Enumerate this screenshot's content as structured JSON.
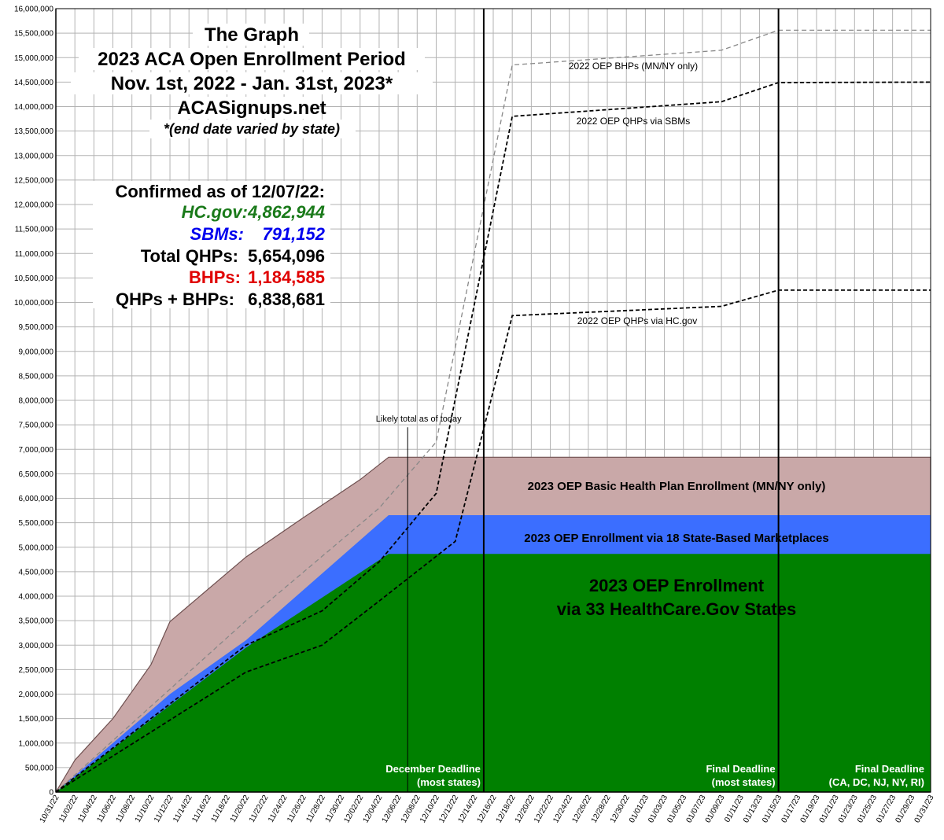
{
  "title_lines": [
    "The Graph",
    "2023 ACA Open Enrollment Period",
    "Nov. 1st, 2022 - Jan. 31st, 2023*",
    "ACASignups.net"
  ],
  "subtitle": "*(end date varied by state)",
  "stats": {
    "heading": "Confirmed as of 12/07/22:",
    "rows": [
      {
        "label": "HC.gov:",
        "value": "4,862,944",
        "color": "#1a7a1a",
        "italic": true
      },
      {
        "label": "SBMs:",
        "value": "791,152",
        "color": "#0000ee",
        "italic": true
      },
      {
        "label": "Total QHPs:",
        "value": "5,654,096",
        "color": "#000000",
        "italic": false
      },
      {
        "label": "BHPs:",
        "value": "1,184,585",
        "color": "#e00000",
        "italic": false
      },
      {
        "label": "QHPs + BHPs:",
        "value": "6,838,681",
        "color": "#000000",
        "italic": false
      }
    ]
  },
  "colors": {
    "hcgov": "#008000",
    "sbm": "#3b6eff",
    "bhp": "#c9a8a8",
    "grid": "#b3b3b3",
    "line2022": "#000000",
    "line2022_bhp": "#888888"
  },
  "chart_data": {
    "type": "area",
    "x": [
      "10/31/22",
      "11/02/22",
      "11/04/22",
      "11/06/22",
      "11/08/22",
      "11/10/22",
      "11/12/22",
      "11/14/22",
      "11/16/22",
      "11/18/22",
      "11/20/22",
      "11/22/22",
      "11/24/22",
      "11/26/22",
      "11/28/22",
      "11/30/22",
      "12/02/22",
      "12/04/22",
      "12/06/22",
      "12/08/22",
      "12/10/22",
      "12/12/22",
      "12/14/22",
      "12/16/22",
      "12/18/22",
      "12/20/22",
      "12/22/22",
      "12/24/22",
      "12/26/22",
      "12/28/22",
      "12/30/22",
      "01/01/23",
      "01/03/23",
      "01/05/23",
      "01/07/23",
      "01/09/23",
      "01/11/23",
      "01/13/23",
      "01/15/23",
      "01/17/23",
      "01/19/23",
      "01/21/23",
      "01/23/23",
      "01/25/23",
      "01/27/23",
      "01/29/23",
      "01/31/23"
    ],
    "ylim": [
      0,
      16000000
    ],
    "yticks": [
      "0",
      "500,000",
      "1,000,000",
      "1,500,000",
      "2,000,000",
      "2,500,000",
      "3,000,000",
      "3,500,000",
      "4,000,000",
      "4,500,000",
      "5,000,000",
      "5,500,000",
      "6,000,000",
      "6,500,000",
      "7,000,000",
      "7,500,000",
      "8,000,000",
      "8,500,000",
      "9,000,000",
      "9,500,000",
      "10,000,000",
      "10,500,000",
      "11,000,000",
      "11,500,000",
      "12,000,000",
      "12,500,000",
      "13,000,000",
      "13,500,000",
      "14,000,000",
      "14,500,000",
      "15,000,000",
      "15,500,000",
      "16,000,000"
    ],
    "grid": true,
    "stacked_areas": [
      {
        "name": "2023 OEP Enrollment via 33 HealthCare.Gov States",
        "color": "#008000",
        "points": [
          [
            "10/31/22",
            0
          ],
          [
            "11/20/22",
            2950000
          ],
          [
            "12/05/22",
            4862944
          ],
          [
            "01/31/23",
            4862944
          ]
        ]
      },
      {
        "name": "2023 OEP Enrollment via 18 State-Based Marketplaces",
        "color": "#3b6eff",
        "points": [
          [
            "10/31/22",
            0
          ],
          [
            "11/12/22",
            2000000
          ],
          [
            "11/20/22",
            3100000
          ],
          [
            "12/05/22",
            5654096
          ],
          [
            "01/31/23",
            5654096
          ]
        ]
      },
      {
        "name": "2023 OEP Basic Health Plan Enrollment (MN/NY only)",
        "color": "#c9a8a8",
        "points": [
          [
            "10/31/22",
            0
          ],
          [
            "11/02/22",
            650000
          ],
          [
            "11/06/22",
            1500000
          ],
          [
            "11/10/22",
            2600000
          ],
          [
            "11/12/22",
            3480000
          ],
          [
            "11/20/22",
            4800000
          ],
          [
            "11/26/22",
            5600000
          ],
          [
            "12/02/22",
            6380000
          ],
          [
            "12/05/22",
            6838681
          ],
          [
            "01/31/23",
            6838681
          ]
        ]
      }
    ],
    "lines": [
      {
        "name": "2022 OEP BHPs (MN/NY only)",
        "style": "dashed",
        "color": "#888888",
        "points": [
          [
            "10/31/22",
            0
          ],
          [
            "11/20/22",
            3500000
          ],
          [
            "12/04/22",
            5800000
          ],
          [
            "12/10/22",
            7150000
          ],
          [
            "12/18/22",
            14850000
          ],
          [
            "01/09/23",
            15150000
          ],
          [
            "01/15/23",
            15560000
          ],
          [
            "01/31/23",
            15560000
          ]
        ]
      },
      {
        "name": "2022 OEP QHPs via SBMs",
        "style": "dashed",
        "color": "#000000",
        "points": [
          [
            "10/31/22",
            0
          ],
          [
            "11/20/22",
            3000000
          ],
          [
            "11/28/22",
            3700000
          ],
          [
            "12/04/22",
            4700000
          ],
          [
            "12/10/22",
            6100000
          ],
          [
            "12/18/22",
            13800000
          ],
          [
            "01/09/23",
            14100000
          ],
          [
            "01/15/23",
            14490000
          ],
          [
            "01/31/23",
            14500000
          ]
        ]
      },
      {
        "name": "2022 OEP QHPs via HC.gov",
        "style": "dashed",
        "color": "#000000",
        "points": [
          [
            "10/31/22",
            0
          ],
          [
            "11/20/22",
            2450000
          ],
          [
            "11/28/22",
            3000000
          ],
          [
            "12/04/22",
            3900000
          ],
          [
            "12/12/22",
            5120000
          ],
          [
            "12/18/22",
            9730000
          ],
          [
            "01/09/23",
            9920000
          ],
          [
            "01/15/23",
            10250000
          ],
          [
            "01/31/23",
            10250000
          ]
        ]
      }
    ],
    "vertical_lines": [
      {
        "x": "12/15/22",
        "label_lines": [
          "December Deadline",
          "(most states)"
        ]
      },
      {
        "x": "01/15/23",
        "label_lines": [
          "Final Deadline",
          "(most states)"
        ]
      }
    ],
    "end_label_lines": [
      "Final Deadline",
      "(CA, DC, NJ, NY, RI)"
    ],
    "annotation": {
      "text": "Likely total as of today",
      "x": "12/07/22",
      "y_top": 7450000
    }
  }
}
